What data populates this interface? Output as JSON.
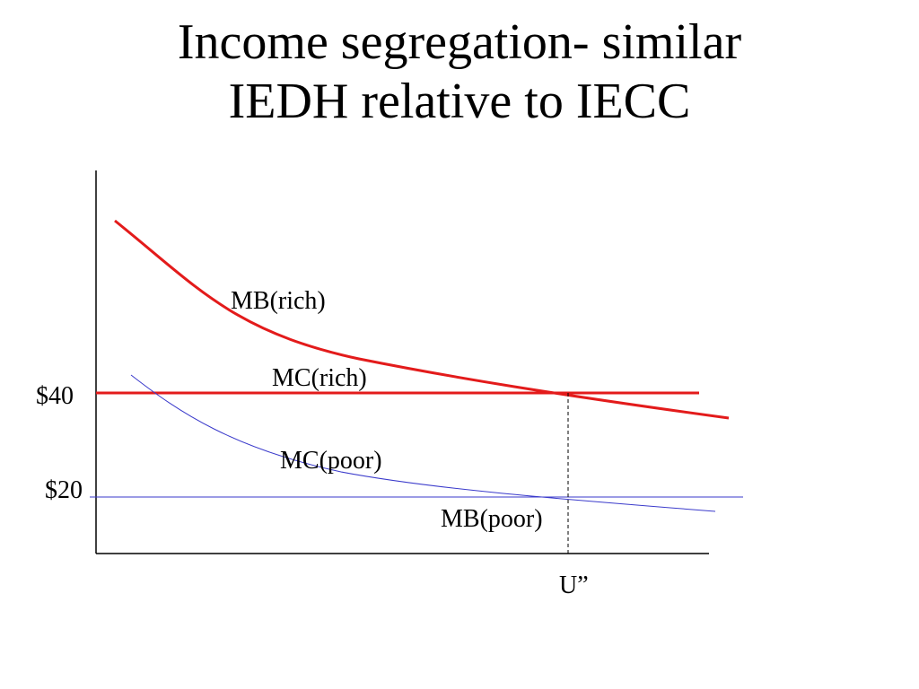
{
  "title": {
    "line1": "Income segregation- similar",
    "line2": "IEDH relative to IECC"
  },
  "labels": {
    "mb_rich": "MB(rich)",
    "mc_rich": "MC(rich)",
    "mc_poor": "MC(poor)",
    "mb_poor": "MB(poor)",
    "price_high": "$40",
    "price_low": "$20",
    "quantity": "U”"
  },
  "colors": {
    "rich": "#e31b1b",
    "poor": "#3a3acb",
    "axis": "#000000"
  }
}
